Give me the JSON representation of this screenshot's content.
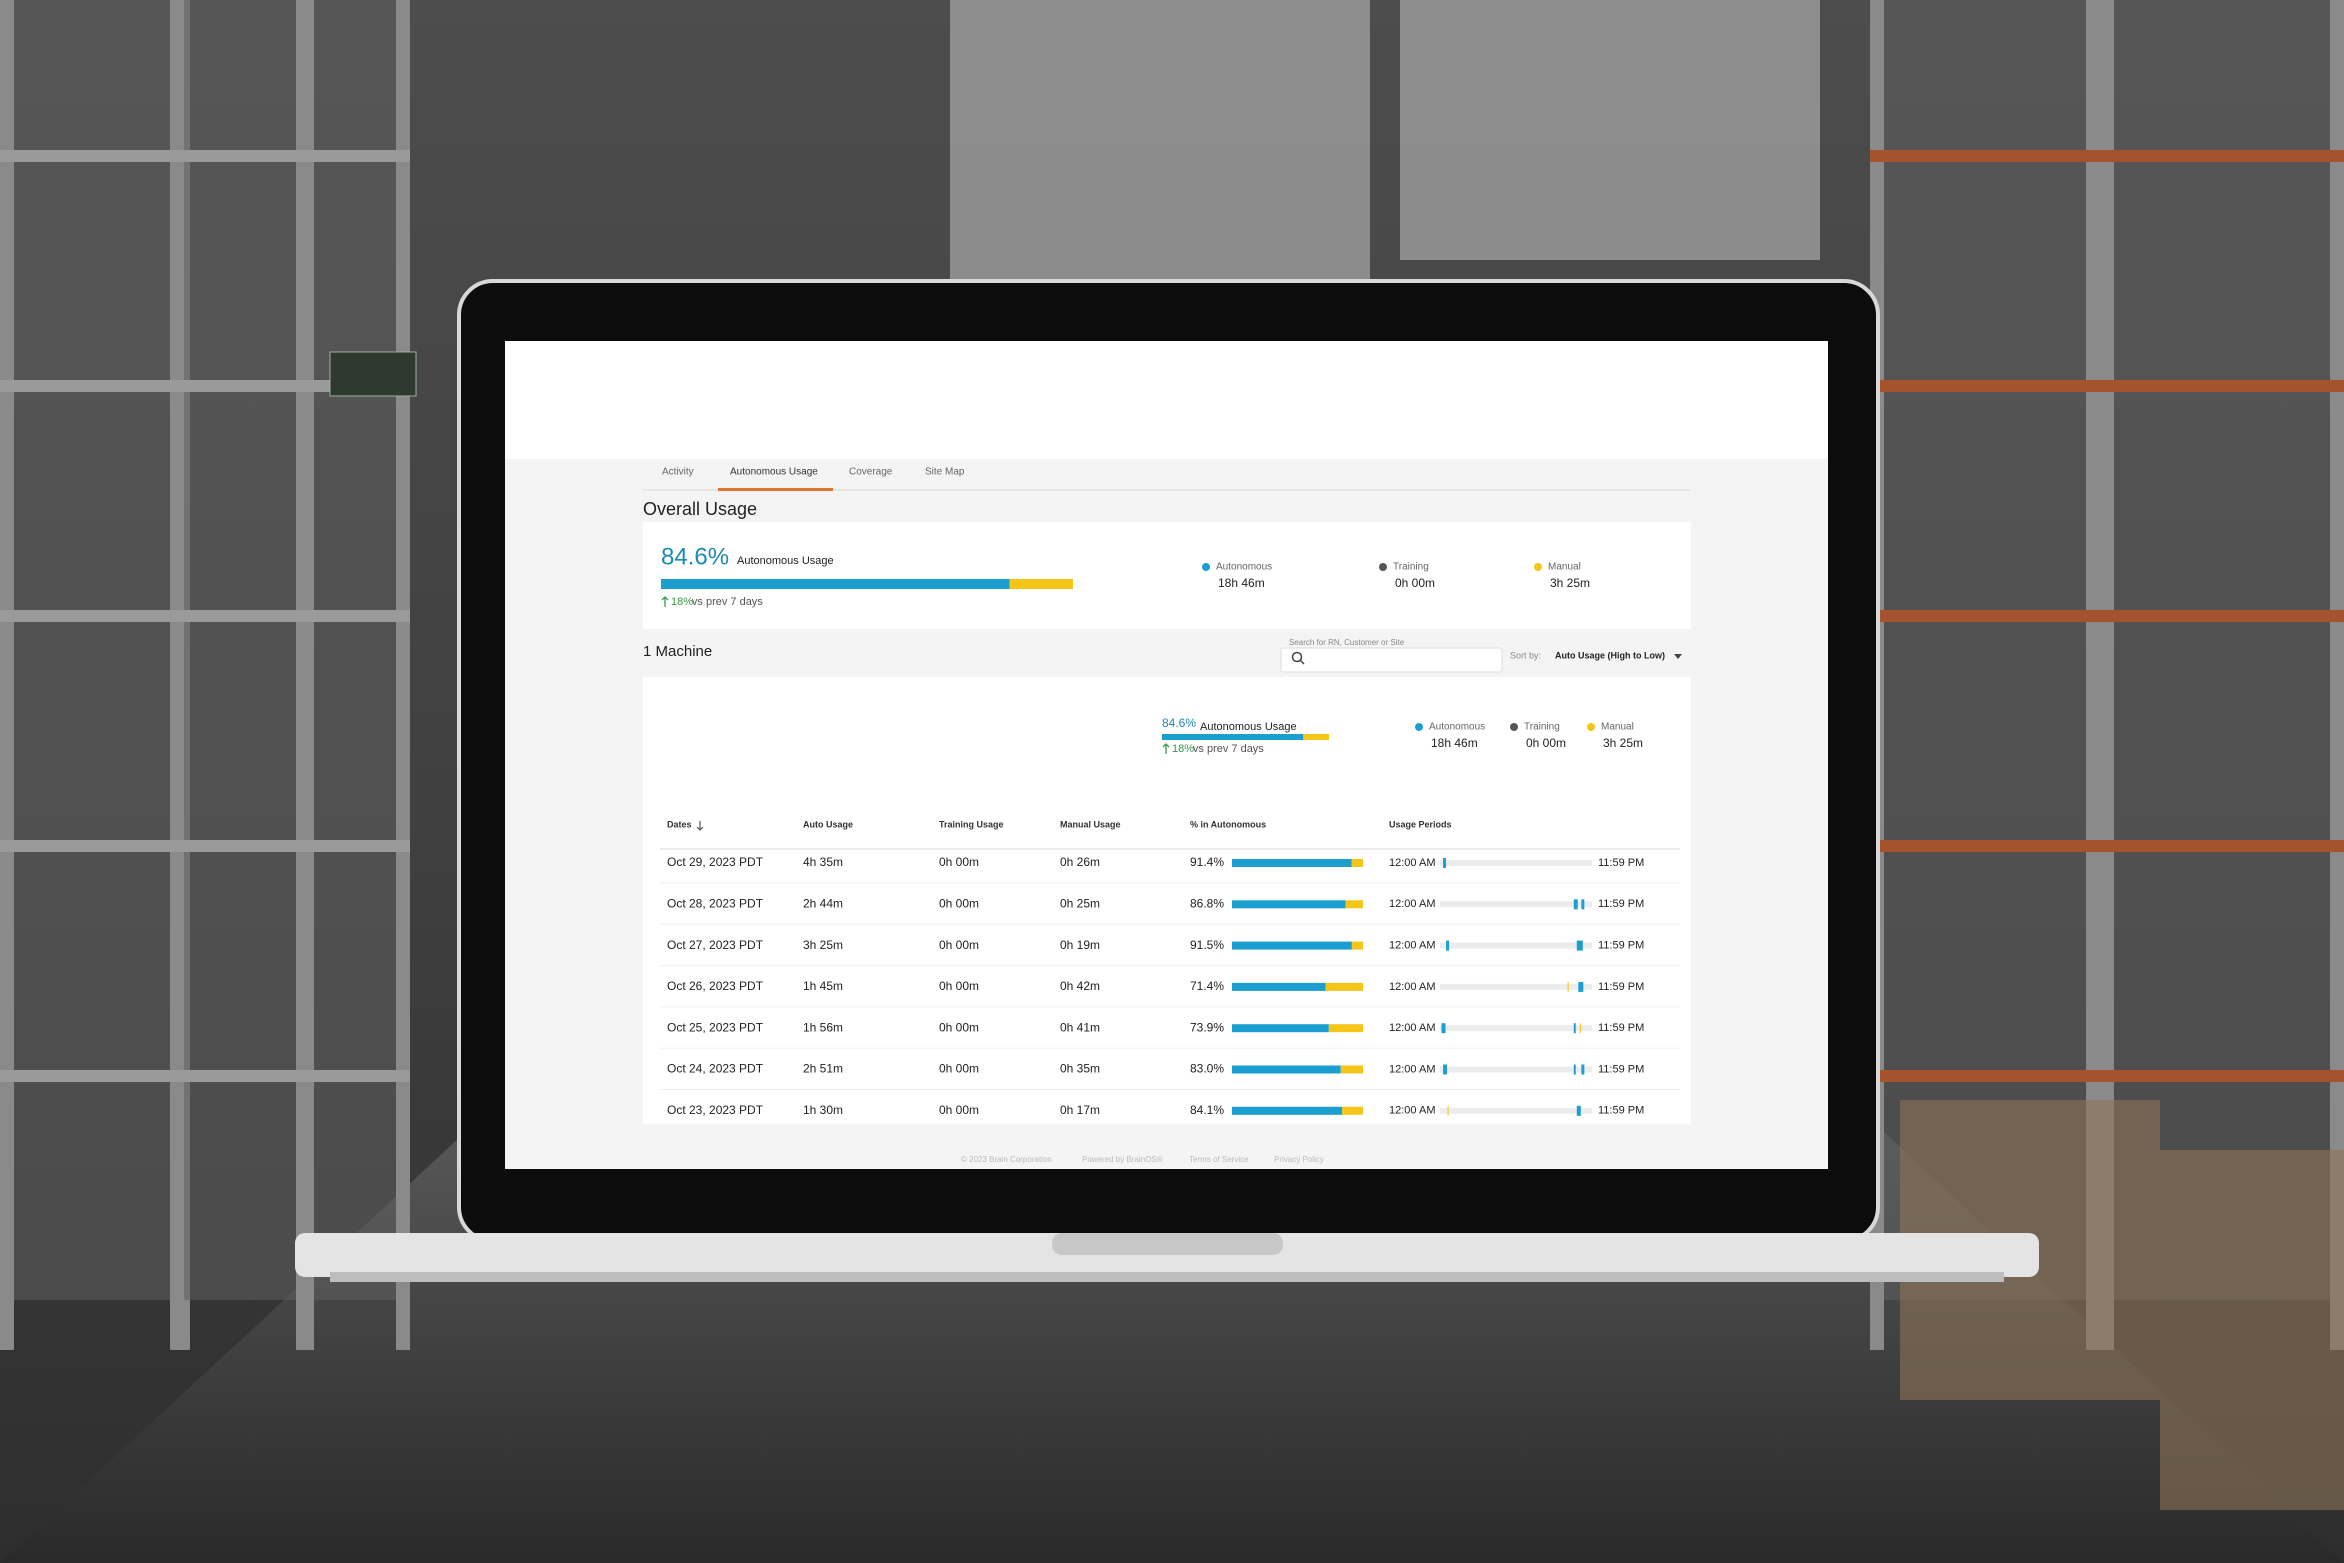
{
  "tabs": [
    "Activity",
    "Autonomous Usage",
    "Coverage",
    "Site Map"
  ],
  "overall": {
    "title": "Overall Usage",
    "percent": {
      "value": 84.6,
      "label": "84.6%"
    },
    "label": "Autonomous Usage",
    "change": "18%",
    "change_note": "vs prev 7 days",
    "legend": [
      {
        "name": "Autonomous",
        "value": "18h 46m",
        "color": "#1a9fd0"
      },
      {
        "name": "Training",
        "value": "0h 00m",
        "color": "#555555"
      },
      {
        "name": "Manual",
        "value": "3h 25m",
        "color": "#f5c518"
      }
    ]
  },
  "machines": {
    "title": "1 Machine",
    "search_label": "Search for RN, Customer or Site",
    "sort_label": "Sort by:",
    "sort_value": "Auto Usage (High to Low)",
    "summary": {
      "percent": {
        "value": 84.6,
        "label": "84.6%"
      },
      "label": "Autonomous Usage",
      "change": "18%",
      "change_note": "vs prev 7 days",
      "legend": [
        {
          "name": "Autonomous",
          "value": "18h 46m",
          "color": "#1a9fd0"
        },
        {
          "name": "Training",
          "value": "0h 00m",
          "color": "#555555"
        },
        {
          "name": "Manual",
          "value": "3h 25m",
          "color": "#f5c518"
        }
      ]
    },
    "columns": [
      "Dates",
      "Auto Usage",
      "Training Usage",
      "Manual Usage",
      "% in Autonomous",
      "Usage Periods"
    ],
    "rows": [
      {
        "date": "Oct 29, 2023 PDT",
        "auto": "4h 35m",
        "training": "0h 00m",
        "manual": "0h 26m",
        "pct": {
          "value": 91.4,
          "label": "91.4%"
        },
        "start": "12:00 AM",
        "end": "11:59 PM"
      },
      {
        "date": "Oct 28, 2023 PDT",
        "auto": "2h 44m",
        "training": "0h 00m",
        "manual": "0h 25m",
        "pct": {
          "value": 86.8,
          "label": "86.8%"
        },
        "start": "12:00 AM",
        "end": "11:59 PM"
      },
      {
        "date": "Oct 27, 2023 PDT",
        "auto": "3h 25m",
        "training": "0h 00m",
        "manual": "0h 19m",
        "pct": {
          "value": 91.5,
          "label": "91.5%"
        },
        "start": "12:00 AM",
        "end": "11:59 PM"
      },
      {
        "date": "Oct 26, 2023 PDT",
        "auto": "1h 45m",
        "training": "0h 00m",
        "manual": "0h 42m",
        "pct": {
          "value": 71.4,
          "label": "71.4%"
        },
        "start": "12:00 AM",
        "end": "11:59 PM"
      },
      {
        "date": "Oct 25, 2023 PDT",
        "auto": "1h 56m",
        "training": "0h 00m",
        "manual": "0h 41m",
        "pct": {
          "value": 73.9,
          "label": "73.9%"
        },
        "start": "12:00 AM",
        "end": "11:59 PM"
      },
      {
        "date": "Oct 24, 2023 PDT",
        "auto": "2h 51m",
        "training": "0h 00m",
        "manual": "0h 35m",
        "pct": {
          "value": 83.0,
          "label": "83.0%"
        },
        "start": "12:00 AM",
        "end": "11:59 PM"
      },
      {
        "date": "Oct 23, 2023 PDT",
        "auto": "1h 30m",
        "training": "0h 00m",
        "manual": "0h 17m",
        "pct": {
          "value": 84.1,
          "label": "84.1%"
        },
        "start": "12:00 AM",
        "end": "11:59 PM"
      }
    ]
  },
  "footer": [
    "© 2023 Brain Corporation",
    "Powered by BrainOS®",
    "Terms of Service",
    "Privacy Policy"
  ]
}
